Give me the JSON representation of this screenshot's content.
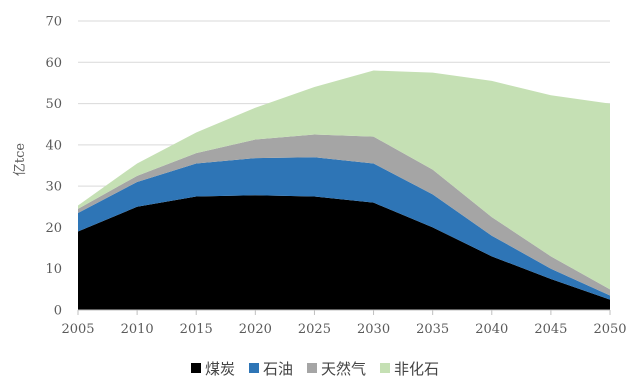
{
  "chart_data": {
    "type": "area",
    "stacked": true,
    "title": "",
    "xlabel": "",
    "ylabel": "亿tce",
    "x": [
      2005,
      2010,
      2015,
      2020,
      2025,
      2030,
      2035,
      2040,
      2045,
      2050
    ],
    "ylim": [
      0,
      70
    ],
    "yticks": [
      0,
      10,
      20,
      30,
      40,
      50,
      60,
      70
    ],
    "grid": true,
    "legend_position": "bottom",
    "series": [
      {
        "name": "煤炭",
        "color": "#000000",
        "values": [
          19,
          25,
          27.5,
          27.8,
          27.5,
          26,
          20,
          13,
          7.5,
          2.5
        ]
      },
      {
        "name": "石油",
        "color": "#2e75b6",
        "values": [
          4.5,
          6,
          8,
          9,
          9.5,
          9.5,
          8,
          5,
          2.5,
          1
        ]
      },
      {
        "name": "天然气",
        "color": "#a5a5a5",
        "values": [
          1,
          1.5,
          2.5,
          4.5,
          5.5,
          6.5,
          6,
          4.5,
          3,
          1.5
        ]
      },
      {
        "name": "非化石",
        "color": "#c5e0b4",
        "values": [
          0.8,
          3,
          5,
          7.7,
          11.5,
          16,
          23.5,
          33,
          39,
          45
        ]
      }
    ]
  }
}
